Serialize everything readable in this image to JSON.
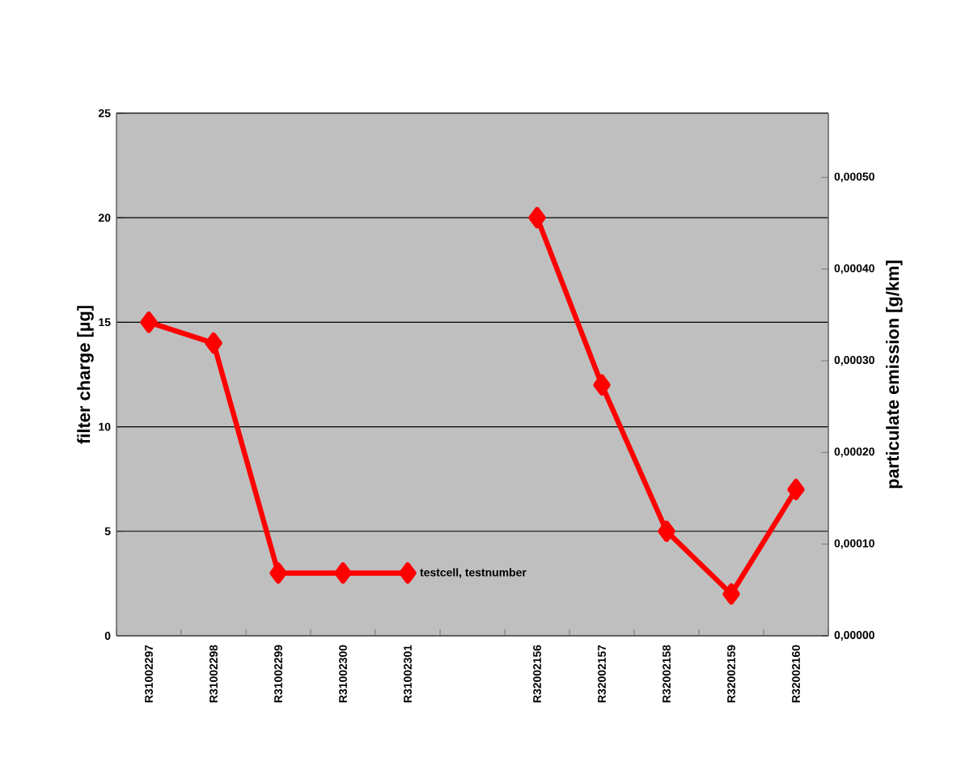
{
  "chart_data": {
    "type": "line",
    "categories": [
      "R31002297",
      "R31002298",
      "R31002299",
      "R31002300",
      "R31002301",
      null,
      "R32002156",
      "R32002157",
      "R32002158",
      "R32002159",
      "R32002160"
    ],
    "series": [
      {
        "color": "#ff0000",
        "values": [
          15,
          14,
          3,
          3,
          3,
          null,
          20,
          12,
          5,
          2,
          7
        ]
      }
    ],
    "xlabel": "testcell, testnumber",
    "ylabel": "filter charge [µg]",
    "y2label": "particulate emission [g/km]",
    "ylim": [
      0,
      25
    ],
    "yticks": [
      0,
      5,
      10,
      15,
      20,
      25
    ],
    "y2lim": [
      0,
      0.00057
    ],
    "y2ticks": [
      {
        "value": 0,
        "label": "0,00000"
      },
      {
        "value": 0.0001,
        "label": "0,00010"
      },
      {
        "value": 0.0002,
        "label": "0,00020"
      },
      {
        "value": 0.0003,
        "label": "0,00030"
      },
      {
        "value": 0.0004,
        "label": "0,00040"
      },
      {
        "value": 0.0005,
        "label": "0,00050"
      }
    ],
    "grid": "y",
    "marker": "diamond",
    "line_style": "solid"
  }
}
